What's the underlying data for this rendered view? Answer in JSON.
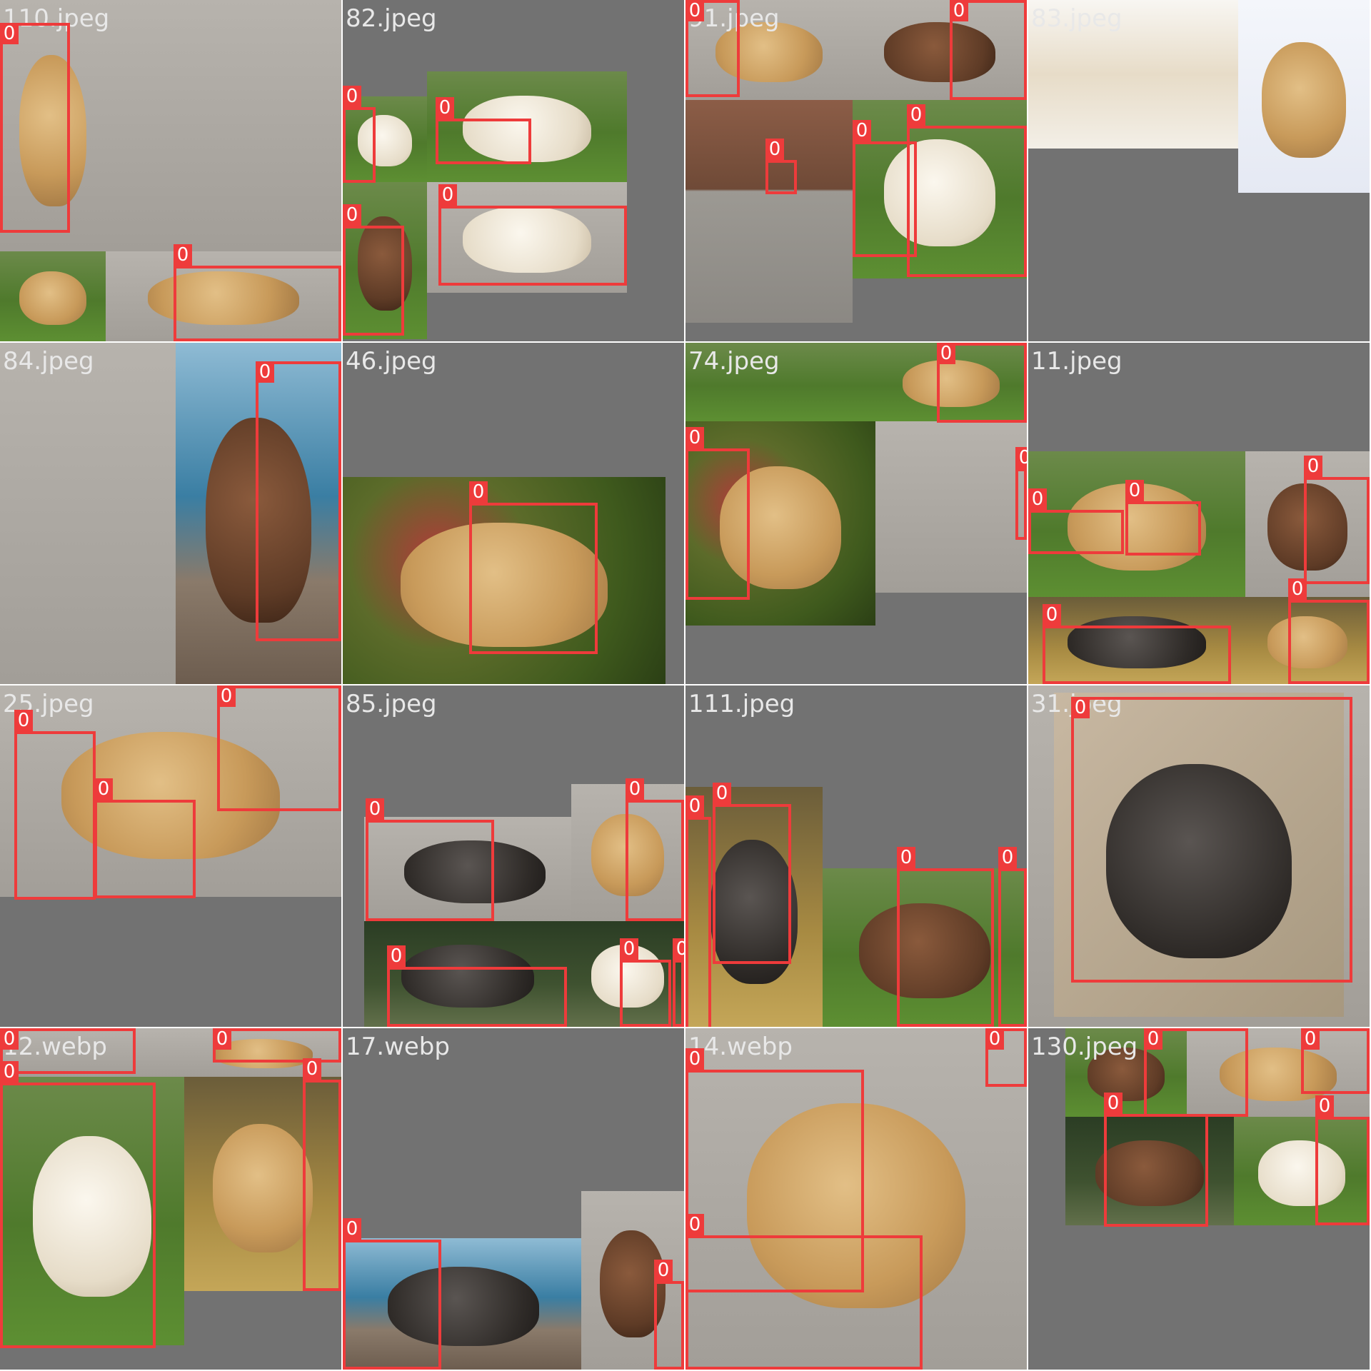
{
  "tiles": [
    {
      "label": "110.jpeg",
      "boxes": [
        {
          "class": "0"
        },
        {
          "class": "0"
        }
      ]
    },
    {
      "label": "82.jpeg",
      "boxes": [
        {
          "class": "0"
        },
        {
          "class": "0"
        },
        {
          "class": "0"
        },
        {
          "class": "0"
        }
      ]
    },
    {
      "label": "91.jpeg",
      "boxes": [
        {
          "class": "0"
        },
        {
          "class": "0"
        },
        {
          "class": "0"
        },
        {
          "class": "0"
        },
        {
          "class": "0"
        }
      ]
    },
    {
      "label": "83.jpeg",
      "boxes": []
    },
    {
      "label": "84.jpeg",
      "boxes": [
        {
          "class": "0"
        }
      ]
    },
    {
      "label": "46.jpeg",
      "boxes": [
        {
          "class": "0"
        }
      ]
    },
    {
      "label": "74.jpeg",
      "boxes": [
        {
          "class": "0"
        },
        {
          "class": "0"
        },
        {
          "class": "0"
        }
      ]
    },
    {
      "label": "11.jpeg",
      "boxes": [
        {
          "class": "0"
        },
        {
          "class": "0"
        },
        {
          "class": "0"
        },
        {
          "class": "0"
        },
        {
          "class": "0"
        }
      ]
    },
    {
      "label": "25.jpeg",
      "boxes": [
        {
          "class": "0"
        },
        {
          "class": "0"
        },
        {
          "class": "0"
        }
      ]
    },
    {
      "label": "85.jpeg",
      "boxes": [
        {
          "class": "0"
        },
        {
          "class": "0"
        },
        {
          "class": "0"
        },
        {
          "class": "0"
        },
        {
          "class": "0"
        }
      ]
    },
    {
      "label": "111.jpeg",
      "boxes": [
        {
          "class": "0"
        },
        {
          "class": "0"
        },
        {
          "class": "0"
        },
        {
          "class": "0"
        }
      ]
    },
    {
      "label": "31.jpeg",
      "boxes": [
        {
          "class": "0"
        }
      ]
    },
    {
      "label": "12.webp",
      "boxes": [
        {
          "class": "0"
        },
        {
          "class": "0"
        },
        {
          "class": "0"
        },
        {
          "class": "0"
        }
      ]
    },
    {
      "label": "17.webp",
      "boxes": [
        {
          "class": "0"
        },
        {
          "class": "0"
        }
      ]
    },
    {
      "label": "14.webp",
      "boxes": [
        {
          "class": "0"
        },
        {
          "class": "0"
        },
        {
          "class": "0"
        }
      ]
    },
    {
      "label": "130.jpeg",
      "boxes": [
        {
          "class": "0"
        },
        {
          "class": "0"
        },
        {
          "class": "0"
        },
        {
          "class": "0"
        }
      ]
    }
  ],
  "colors": {
    "box": "#ee3b3b",
    "tile_background": "#727272",
    "grid_line": "#ffffff",
    "label_text": "#e8e8e8"
  }
}
